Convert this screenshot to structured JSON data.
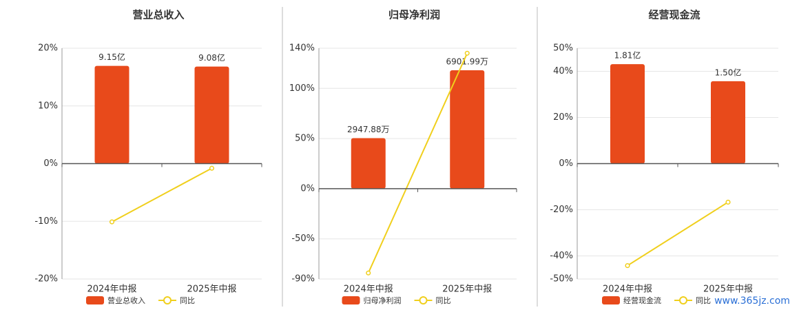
{
  "chart_data": [
    {
      "type": "bar-line",
      "title": "营业总收入",
      "categories": [
        "2024年中报",
        "2025年中报"
      ],
      "series": [
        {
          "name": "营业总收入",
          "type": "bar",
          "color": "#e84a1b",
          "axis": "y2",
          "values": [
            9.15,
            9.08
          ],
          "value_labels": [
            "9.15亿",
            "9.08亿"
          ]
        },
        {
          "name": "同比",
          "type": "line",
          "color": "#f0cf1c",
          "values": [
            -10.1,
            -0.8
          ]
        }
      ],
      "ylim": [
        -20,
        20
      ],
      "yticks": [
        {
          "value": -20,
          "label": "-20%"
        },
        {
          "value": -10,
          "label": "-10%"
        },
        {
          "value": 0,
          "label": "0%"
        },
        {
          "value": 10,
          "label": "10%"
        },
        {
          "value": 20,
          "label": "20%"
        }
      ],
      "y2lim": [
        -10.8,
        10.8
      ],
      "grid": true,
      "legend": "bottom"
    },
    {
      "type": "bar-line",
      "title": "归母净利润",
      "categories": [
        "2024年中报",
        "2025年中报"
      ],
      "series": [
        {
          "name": "归母净利润",
          "type": "bar",
          "color": "#e84a1b",
          "axis": "y2",
          "values": [
            2947.88,
            6901.99
          ],
          "value_labels": [
            "2947.88万",
            "6901.99万"
          ]
        },
        {
          "name": "同比",
          "type": "line",
          "color": "#f0cf1c",
          "values": [
            -84,
            135
          ]
        }
      ],
      "ylim": [
        -90,
        140
      ],
      "yticks": [
        {
          "value": -90,
          "label": "-90%"
        },
        {
          "value": -50,
          "label": "-50%"
        },
        {
          "value": 0,
          "label": "0%"
        },
        {
          "value": 50,
          "label": "50%"
        },
        {
          "value": 100,
          "label": "100%"
        },
        {
          "value": 140,
          "label": "140%"
        }
      ],
      "y2lim": [
        -5264,
        8189
      ],
      "grid": true,
      "legend": "bottom"
    },
    {
      "type": "bar-line",
      "title": "经营现金流",
      "categories": [
        "2024年中报",
        "2025年中报"
      ],
      "series": [
        {
          "name": "经营现金流",
          "type": "bar",
          "color": "#e84a1b",
          "axis": "y2",
          "values": [
            1.81,
            1.5
          ],
          "value_labels": [
            "1.81亿",
            "1.50亿"
          ]
        },
        {
          "name": "同比",
          "type": "line",
          "color": "#f0cf1c",
          "values": [
            -44.2,
            -16.7
          ]
        }
      ],
      "ylim": [
        -50,
        50
      ],
      "yticks": [
        {
          "value": -50,
          "label": "-50%"
        },
        {
          "value": -40,
          "label": "-40%"
        },
        {
          "value": -20,
          "label": "-20%"
        },
        {
          "value": 0,
          "label": "0%"
        },
        {
          "value": 20,
          "label": "20%"
        },
        {
          "value": 40,
          "label": "40%"
        },
        {
          "value": 50,
          "label": "50%"
        }
      ],
      "y2lim": [
        -2.1,
        2.1
      ],
      "grid": true,
      "legend": "bottom"
    }
  ],
  "watermark": "www.365jz.com"
}
